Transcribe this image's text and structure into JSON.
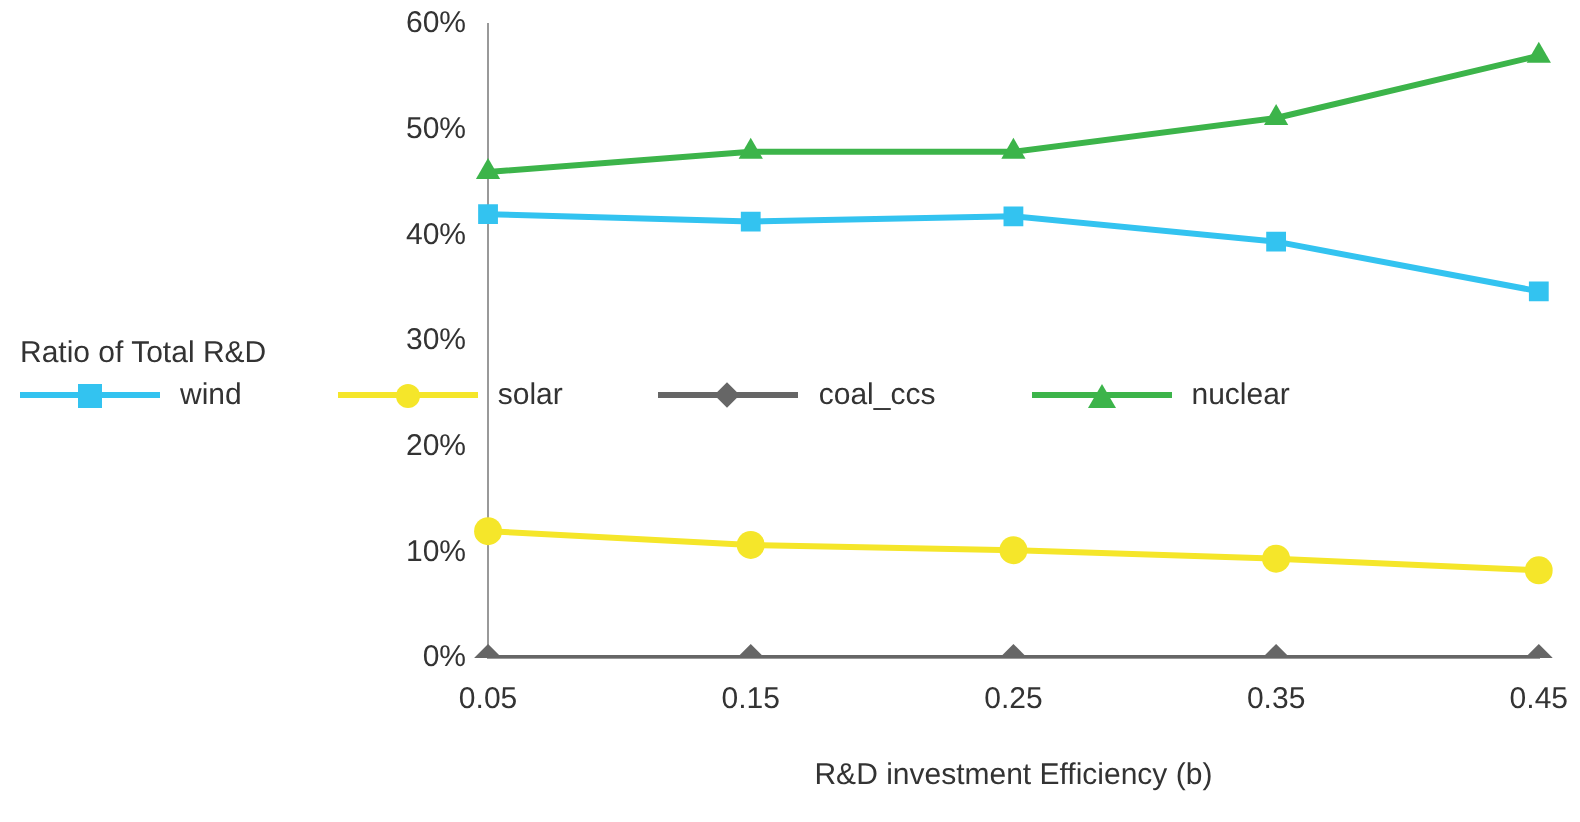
{
  "chart_data": {
    "type": "line",
    "xlabel": "R&D investment Efficiency (b)",
    "legend_title": "Ratio of Total R&D",
    "legend": "left",
    "categories": [
      "0.05",
      "0.15",
      "0.25",
      "0.35",
      "0.45"
    ],
    "ylim": [
      0,
      60
    ],
    "yticks": [
      {
        "value": 0,
        "label": "0%"
      },
      {
        "value": 10,
        "label": "10%"
      },
      {
        "value": 20,
        "label": "20%"
      },
      {
        "value": 30,
        "label": "30%"
      },
      {
        "value": 40,
        "label": "40%"
      },
      {
        "value": 50,
        "label": "50%"
      },
      {
        "value": 60,
        "label": "60%"
      }
    ],
    "grid": false,
    "series": [
      {
        "name": "wind",
        "color": "#33c3f0",
        "marker": "square",
        "values": [
          42,
          41.3,
          41.8,
          39.4,
          34.7
        ]
      },
      {
        "name": "solar",
        "color": "#f5e62a",
        "marker": "circle",
        "values": [
          12,
          10.7,
          10.2,
          9.4,
          8.3
        ]
      },
      {
        "name": "coal_ccs",
        "color": "#666666",
        "marker": "diamond",
        "values": [
          0,
          0,
          0,
          0,
          0
        ]
      },
      {
        "name": "nuclear",
        "color": "#3cb44a",
        "marker": "triangle",
        "values": [
          46,
          47.9,
          47.9,
          51.1,
          57
        ]
      }
    ]
  }
}
